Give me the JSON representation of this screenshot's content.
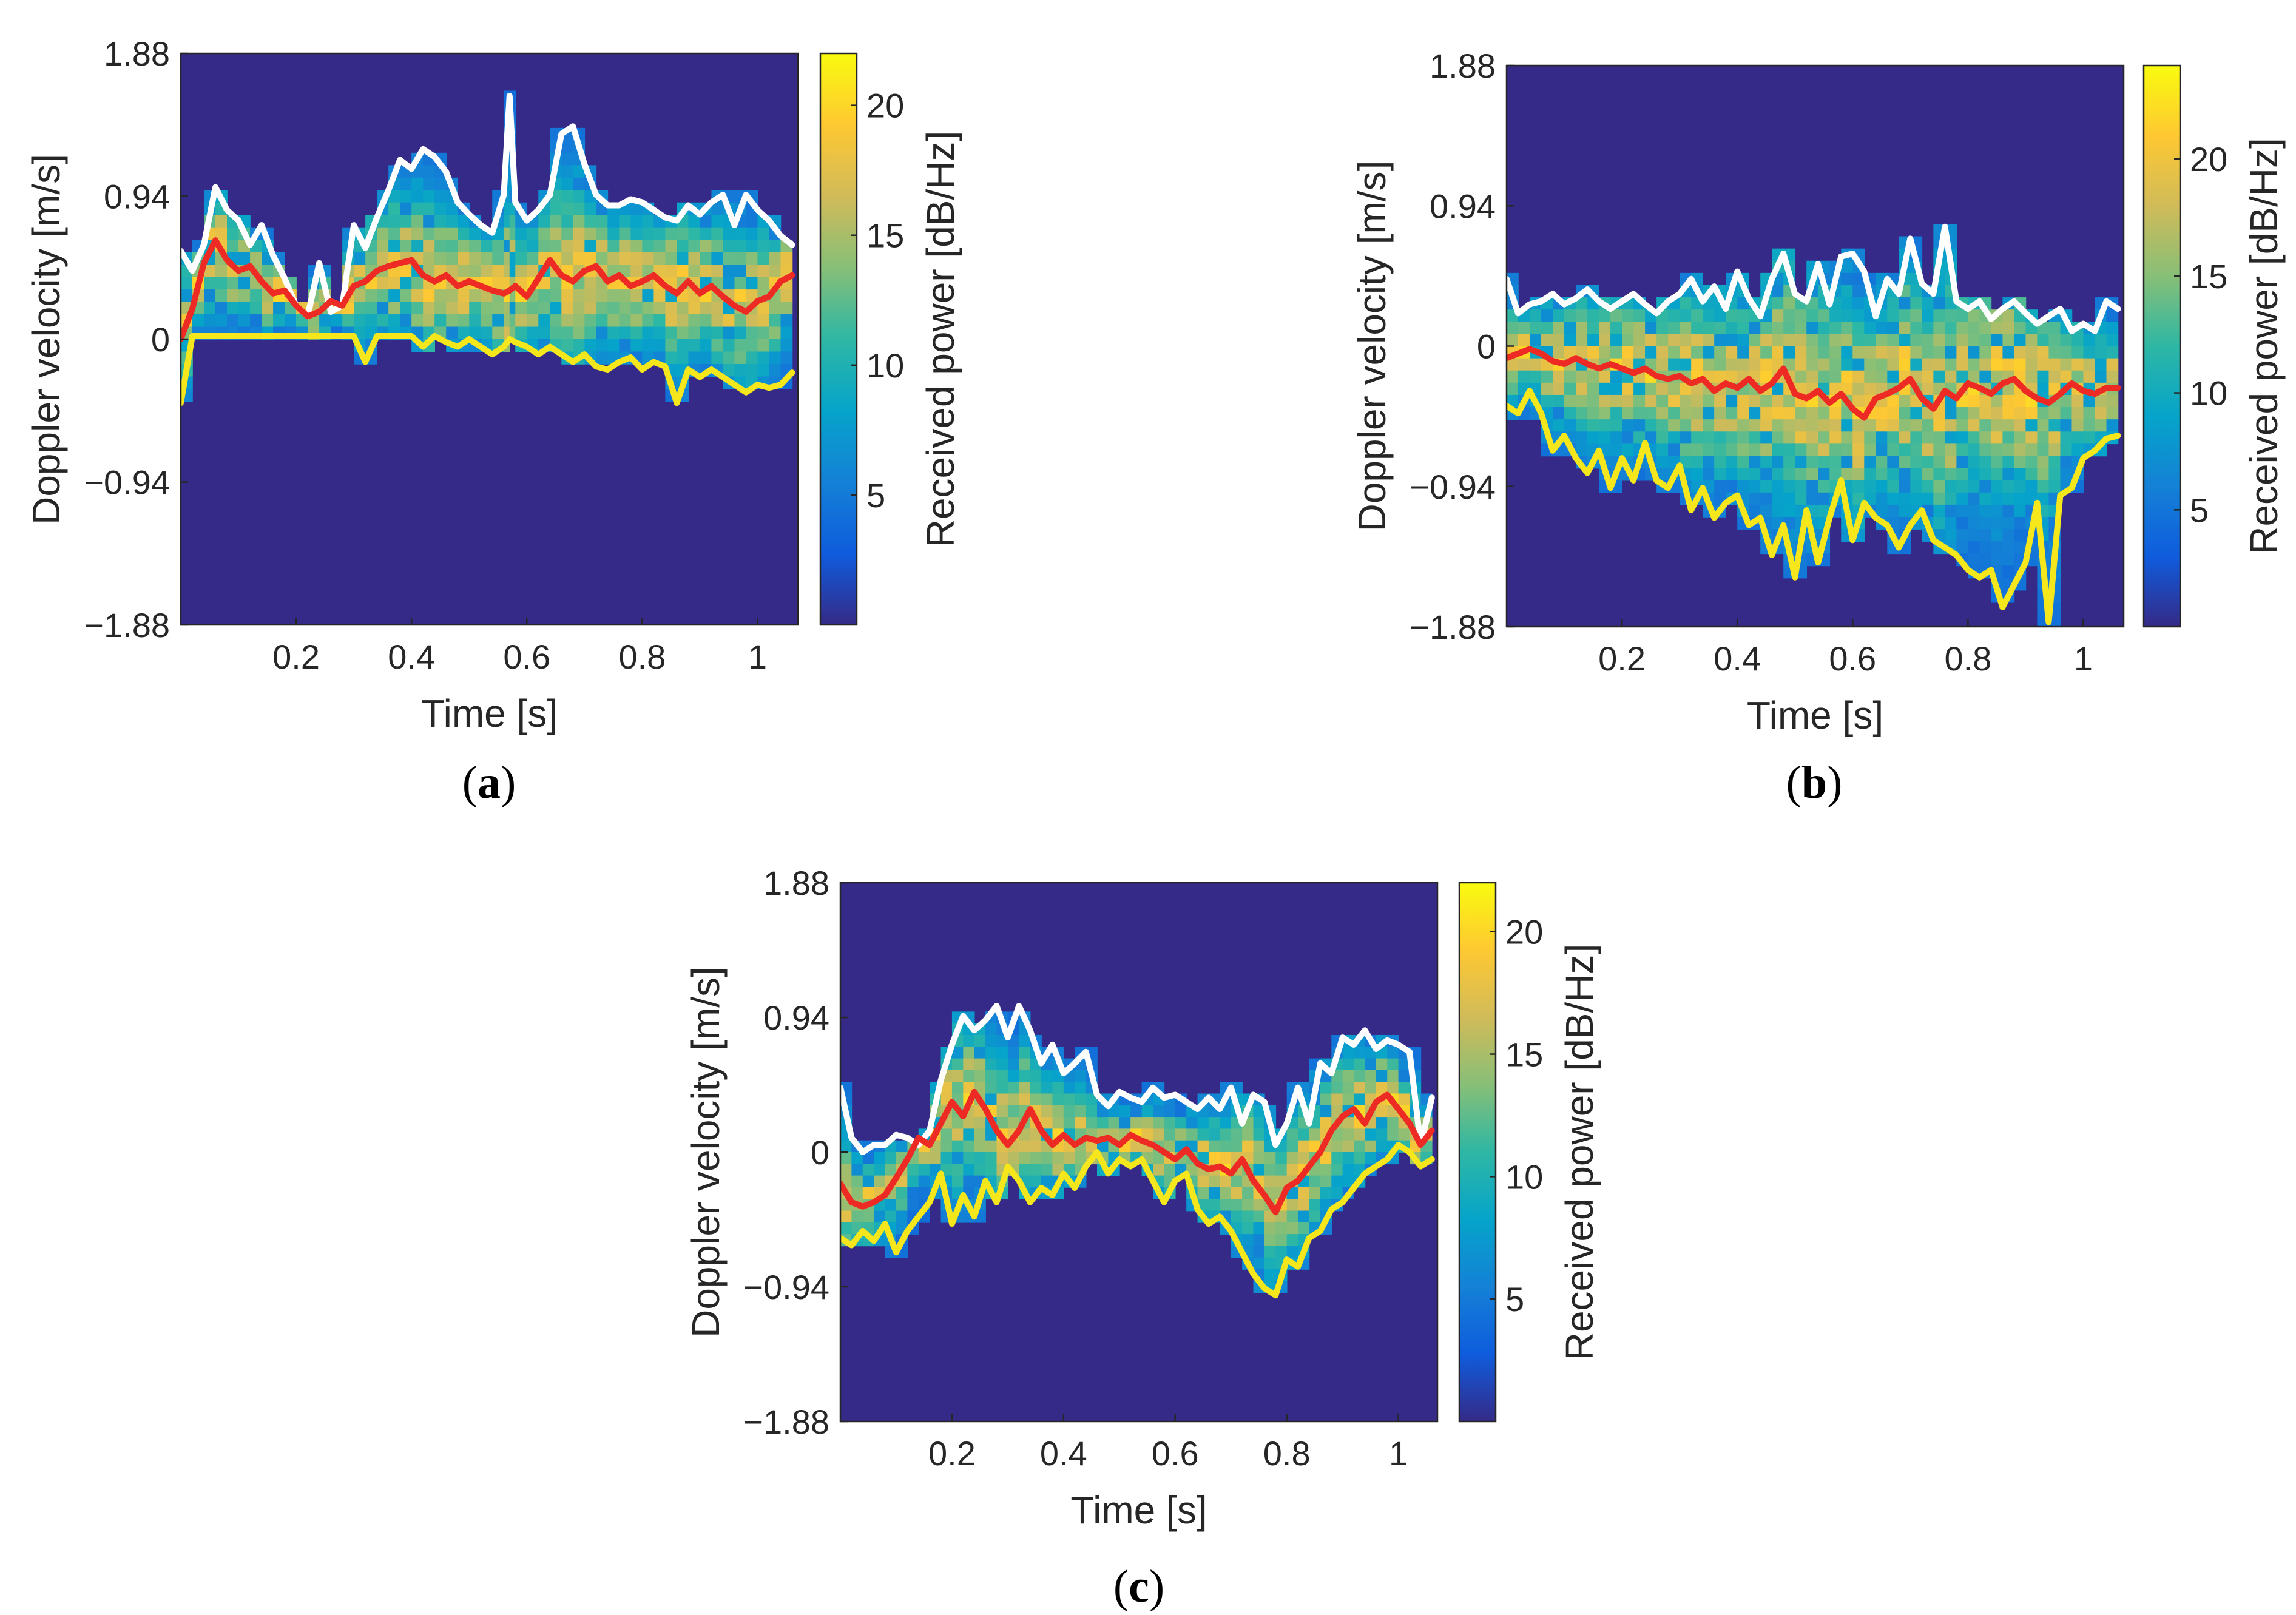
{
  "colors": {
    "background_power": "#352a87",
    "upper_envelope": "#ffffff",
    "mean_velocity": "#ee2a24",
    "lower_envelope": "#f6e61c",
    "axis": "#262626"
  },
  "chart_data": [
    {
      "id": "a",
      "type": "heatmap",
      "caption_letter": "a",
      "xlabel": "Time [s]",
      "ylabel": "Doppler velocity [m/s]",
      "colorbar_label": "Received power [dB/Hz]",
      "xlim": [
        0,
        1.07
      ],
      "ylim": [
        -1.88,
        1.88
      ],
      "xticks": [
        0.2,
        0.4,
        0.6,
        0.8,
        1
      ],
      "xtick_labels": [
        "0.2",
        "0.4",
        "0.6",
        "0.8",
        "1"
      ],
      "yticks": [
        1.88,
        0.94,
        0,
        -0.94,
        -1.88
      ],
      "ytick_labels": [
        "1.88",
        "0.94",
        "0",
        "−0.94",
        "−1.88"
      ],
      "clim": [
        0,
        22
      ],
      "cticks": [
        5,
        10,
        15,
        20
      ],
      "ctick_labels": [
        "5",
        "10",
        "15",
        "20"
      ],
      "x": [
        0.0,
        0.02,
        0.04,
        0.06,
        0.08,
        0.1,
        0.12,
        0.14,
        0.16,
        0.18,
        0.2,
        0.22,
        0.24,
        0.26,
        0.28,
        0.3,
        0.32,
        0.34,
        0.36,
        0.38,
        0.4,
        0.42,
        0.44,
        0.46,
        0.48,
        0.5,
        0.52,
        0.54,
        0.56,
        0.57,
        0.58,
        0.6,
        0.62,
        0.64,
        0.66,
        0.68,
        0.7,
        0.72,
        0.74,
        0.76,
        0.78,
        0.8,
        0.82,
        0.84,
        0.86,
        0.88,
        0.9,
        0.92,
        0.94,
        0.96,
        0.98,
        1.0,
        1.02,
        1.04,
        1.06
      ],
      "series": [
        {
          "name": "upper envelope",
          "color": "#ffffff",
          "values": [
            0.58,
            0.45,
            0.62,
            1.0,
            0.85,
            0.78,
            0.62,
            0.75,
            0.55,
            0.4,
            0.22,
            0.15,
            0.5,
            0.18,
            0.22,
            0.75,
            0.6,
            0.8,
            0.98,
            1.18,
            1.12,
            1.25,
            1.2,
            1.1,
            0.9,
            0.82,
            0.75,
            0.7,
            0.95,
            1.6,
            0.9,
            0.78,
            0.85,
            0.95,
            1.35,
            1.4,
            1.15,
            0.95,
            0.88,
            0.88,
            0.92,
            0.9,
            0.85,
            0.8,
            0.78,
            0.88,
            0.82,
            0.9,
            0.95,
            0.75,
            0.95,
            0.85,
            0.78,
            0.68,
            0.62
          ]
        },
        {
          "name": "mean Doppler velocity",
          "color": "#ee2a24",
          "values": [
            0.0,
            0.2,
            0.5,
            0.65,
            0.52,
            0.45,
            0.48,
            0.38,
            0.3,
            0.32,
            0.22,
            0.15,
            0.18,
            0.25,
            0.22,
            0.35,
            0.38,
            0.45,
            0.48,
            0.5,
            0.52,
            0.42,
            0.38,
            0.42,
            0.35,
            0.38,
            0.35,
            0.32,
            0.3,
            0.32,
            0.35,
            0.28,
            0.4,
            0.52,
            0.42,
            0.38,
            0.45,
            0.48,
            0.38,
            0.42,
            0.35,
            0.38,
            0.42,
            0.35,
            0.3,
            0.38,
            0.3,
            0.35,
            0.28,
            0.22,
            0.18,
            0.25,
            0.28,
            0.38,
            0.42
          ]
        },
        {
          "name": "lower envelope",
          "color": "#f6e61c",
          "values": [
            -0.42,
            0.02,
            0.02,
            0.02,
            0.02,
            0.02,
            0.02,
            0.02,
            0.02,
            0.02,
            0.02,
            0.02,
            0.02,
            0.02,
            0.02,
            0.02,
            -0.15,
            0.02,
            0.02,
            0.02,
            0.02,
            -0.05,
            0.02,
            -0.02,
            -0.05,
            0.0,
            -0.05,
            -0.1,
            -0.05,
            0.0,
            -0.02,
            -0.05,
            -0.1,
            -0.05,
            -0.1,
            -0.15,
            -0.1,
            -0.18,
            -0.2,
            -0.15,
            -0.12,
            -0.2,
            -0.15,
            -0.18,
            -0.42,
            -0.2,
            -0.25,
            -0.2,
            -0.25,
            -0.3,
            -0.35,
            -0.3,
            -0.32,
            -0.3,
            -0.22
          ]
        }
      ]
    },
    {
      "id": "b",
      "type": "heatmap",
      "caption_letter": "b",
      "xlabel": "Time [s]",
      "ylabel": "Doppler velocity [m/s]",
      "colorbar_label": "Received power [dB/Hz]",
      "xlim": [
        0,
        1.07
      ],
      "ylim": [
        -1.88,
        1.88
      ],
      "xticks": [
        0.2,
        0.4,
        0.6,
        0.8,
        1
      ],
      "xtick_labels": [
        "0.2",
        "0.4",
        "0.6",
        "0.8",
        "1"
      ],
      "yticks": [
        1.88,
        0.94,
        0,
        -0.94,
        -1.88
      ],
      "ytick_labels": [
        "1.88",
        "0.94",
        "0",
        "−0.94",
        "−1.88"
      ],
      "clim": [
        0,
        24
      ],
      "cticks": [
        5,
        10,
        15,
        20
      ],
      "ctick_labels": [
        "5",
        "10",
        "15",
        "20"
      ],
      "x": [
        0.0,
        0.02,
        0.04,
        0.06,
        0.08,
        0.1,
        0.12,
        0.14,
        0.16,
        0.18,
        0.2,
        0.22,
        0.24,
        0.26,
        0.28,
        0.3,
        0.32,
        0.34,
        0.36,
        0.38,
        0.4,
        0.42,
        0.44,
        0.46,
        0.48,
        0.5,
        0.52,
        0.54,
        0.56,
        0.58,
        0.6,
        0.62,
        0.64,
        0.66,
        0.68,
        0.7,
        0.72,
        0.74,
        0.76,
        0.78,
        0.8,
        0.82,
        0.84,
        0.86,
        0.88,
        0.9,
        0.92,
        0.94,
        0.96,
        0.98,
        1.0,
        1.02,
        1.04,
        1.06
      ],
      "series": [
        {
          "name": "upper envelope",
          "color": "#ffffff",
          "values": [
            0.45,
            0.22,
            0.28,
            0.3,
            0.35,
            0.28,
            0.32,
            0.38,
            0.3,
            0.25,
            0.3,
            0.35,
            0.28,
            0.22,
            0.3,
            0.35,
            0.45,
            0.3,
            0.4,
            0.25,
            0.5,
            0.32,
            0.2,
            0.45,
            0.62,
            0.35,
            0.3,
            0.55,
            0.28,
            0.6,
            0.62,
            0.5,
            0.2,
            0.45,
            0.35,
            0.72,
            0.42,
            0.35,
            0.8,
            0.3,
            0.25,
            0.3,
            0.18,
            0.25,
            0.3,
            0.22,
            0.15,
            0.2,
            0.25,
            0.1,
            0.15,
            0.1,
            0.3,
            0.25
          ]
        },
        {
          "name": "mean Doppler velocity",
          "color": "#ee2a24",
          "values": [
            -0.08,
            -0.05,
            -0.02,
            -0.05,
            -0.1,
            -0.12,
            -0.08,
            -0.12,
            -0.15,
            -0.12,
            -0.15,
            -0.18,
            -0.15,
            -0.2,
            -0.22,
            -0.2,
            -0.25,
            -0.22,
            -0.3,
            -0.25,
            -0.28,
            -0.22,
            -0.3,
            -0.25,
            -0.15,
            -0.32,
            -0.35,
            -0.3,
            -0.38,
            -0.32,
            -0.42,
            -0.48,
            -0.35,
            -0.32,
            -0.28,
            -0.22,
            -0.35,
            -0.42,
            -0.3,
            -0.35,
            -0.25,
            -0.28,
            -0.32,
            -0.25,
            -0.22,
            -0.3,
            -0.35,
            -0.38,
            -0.32,
            -0.25,
            -0.3,
            -0.32,
            -0.28,
            -0.28
          ]
        },
        {
          "name": "lower envelope",
          "color": "#f6e61c",
          "values": [
            -0.4,
            -0.45,
            -0.3,
            -0.45,
            -0.7,
            -0.6,
            -0.75,
            -0.85,
            -0.7,
            -0.95,
            -0.75,
            -0.9,
            -0.65,
            -0.9,
            -0.95,
            -0.8,
            -1.1,
            -0.95,
            -1.15,
            -1.05,
            -1.0,
            -1.2,
            -1.15,
            -1.4,
            -1.2,
            -1.55,
            -1.1,
            -1.45,
            -1.15,
            -0.9,
            -1.3,
            -1.05,
            -1.15,
            -1.2,
            -1.35,
            -1.2,
            -1.1,
            -1.3,
            -1.35,
            -1.4,
            -1.5,
            -1.55,
            -1.5,
            -1.75,
            -1.6,
            -1.45,
            -1.05,
            -1.85,
            -1.0,
            -0.95,
            -0.75,
            -0.7,
            -0.62,
            -0.6
          ]
        }
      ]
    },
    {
      "id": "c",
      "type": "heatmap",
      "caption_letter": "c",
      "xlabel": "Time [s]",
      "ylabel": "Doppler velocity [m/s]",
      "colorbar_label": "Received power [dB/Hz]",
      "xlim": [
        0,
        1.07
      ],
      "ylim": [
        -1.88,
        1.88
      ],
      "xticks": [
        0.2,
        0.4,
        0.6,
        0.8,
        1
      ],
      "xtick_labels": [
        "0.2",
        "0.4",
        "0.6",
        "0.8",
        "1"
      ],
      "yticks": [
        1.88,
        0.94,
        0,
        -0.94,
        -1.88
      ],
      "ytick_labels": [
        "1.88",
        "0.94",
        "0",
        "−0.94",
        "−1.88"
      ],
      "clim": [
        0,
        22
      ],
      "cticks": [
        5,
        10,
        15,
        20
      ],
      "ctick_labels": [
        "5",
        "10",
        "15",
        "20"
      ],
      "x": [
        0.0,
        0.02,
        0.04,
        0.06,
        0.08,
        0.1,
        0.12,
        0.14,
        0.16,
        0.18,
        0.2,
        0.22,
        0.24,
        0.26,
        0.28,
        0.3,
        0.32,
        0.34,
        0.36,
        0.38,
        0.4,
        0.42,
        0.44,
        0.46,
        0.48,
        0.5,
        0.52,
        0.54,
        0.56,
        0.58,
        0.6,
        0.62,
        0.64,
        0.66,
        0.68,
        0.7,
        0.72,
        0.74,
        0.76,
        0.78,
        0.8,
        0.82,
        0.84,
        0.86,
        0.88,
        0.9,
        0.92,
        0.94,
        0.96,
        0.98,
        1.0,
        1.02,
        1.04,
        1.06
      ],
      "series": [
        {
          "name": "upper envelope",
          "color": "#ffffff",
          "values": [
            0.45,
            0.1,
            0.0,
            0.05,
            0.05,
            0.12,
            0.1,
            0.05,
            0.15,
            0.5,
            0.75,
            0.95,
            0.85,
            0.92,
            1.02,
            0.8,
            1.02,
            0.85,
            0.62,
            0.75,
            0.55,
            0.62,
            0.7,
            0.4,
            0.32,
            0.42,
            0.38,
            0.35,
            0.45,
            0.38,
            0.4,
            0.35,
            0.3,
            0.38,
            0.3,
            0.45,
            0.2,
            0.4,
            0.35,
            0.05,
            0.2,
            0.45,
            0.2,
            0.62,
            0.55,
            0.8,
            0.75,
            0.85,
            0.72,
            0.78,
            0.75,
            0.7,
            0.05,
            0.38
          ]
        },
        {
          "name": "mean Doppler velocity",
          "color": "#ee2a24",
          "values": [
            -0.22,
            -0.35,
            -0.38,
            -0.35,
            -0.3,
            -0.18,
            -0.05,
            0.1,
            0.05,
            0.2,
            0.35,
            0.25,
            0.42,
            0.3,
            0.15,
            0.05,
            0.15,
            0.3,
            0.15,
            0.05,
            0.12,
            0.05,
            0.1,
            0.08,
            0.1,
            0.05,
            0.12,
            0.08,
            0.05,
            0.0,
            -0.05,
            0.02,
            -0.08,
            -0.12,
            -0.1,
            -0.15,
            -0.05,
            -0.2,
            -0.3,
            -0.42,
            -0.25,
            -0.2,
            -0.1,
            0.0,
            0.15,
            0.25,
            0.3,
            0.2,
            0.35,
            0.4,
            0.3,
            0.2,
            0.05,
            0.15
          ]
        },
        {
          "name": "lower envelope",
          "color": "#f6e61c",
          "values": [
            -0.6,
            -0.65,
            -0.55,
            -0.62,
            -0.5,
            -0.7,
            -0.55,
            -0.45,
            -0.35,
            -0.15,
            -0.5,
            -0.3,
            -0.45,
            -0.2,
            -0.35,
            -0.1,
            -0.2,
            -0.35,
            -0.25,
            -0.3,
            -0.15,
            -0.25,
            -0.1,
            0.0,
            -0.15,
            -0.05,
            -0.1,
            -0.05,
            -0.2,
            -0.35,
            -0.2,
            -0.15,
            -0.4,
            -0.5,
            -0.45,
            -0.55,
            -0.7,
            -0.85,
            -0.95,
            -1.0,
            -0.75,
            -0.8,
            -0.6,
            -0.55,
            -0.4,
            -0.35,
            -0.25,
            -0.15,
            -0.1,
            -0.05,
            0.05,
            0.0,
            -0.1,
            -0.05
          ]
        }
      ]
    }
  ]
}
